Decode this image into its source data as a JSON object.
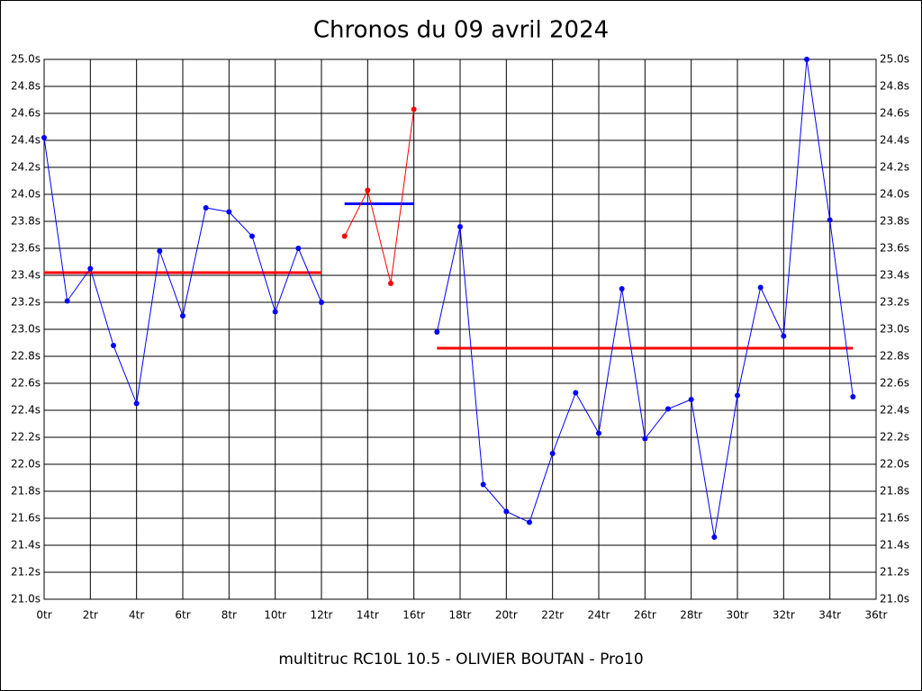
{
  "chart_data": {
    "type": "line",
    "title": "Chronos du 09 avril 2024",
    "footer": "multitruc RC10L 10.5 - OLIVIER BOUTAN - Pro10",
    "x": [
      0,
      1,
      2,
      3,
      4,
      5,
      6,
      7,
      8,
      9,
      10,
      11,
      12,
      13,
      14,
      15,
      16,
      17,
      18,
      19,
      20,
      21,
      22,
      23,
      24,
      25,
      26,
      27,
      28,
      29,
      30,
      31,
      32,
      33,
      34,
      35
    ],
    "series": [
      {
        "color": "#0000ff",
        "values": [
          24.42,
          23.21,
          23.45,
          22.88,
          22.45,
          23.58,
          23.1,
          23.9,
          23.87,
          23.69,
          23.13,
          23.6,
          23.2,
          null,
          null,
          null,
          null,
          22.98,
          23.76,
          21.85,
          21.65,
          21.57,
          22.08,
          22.53,
          22.23,
          23.3,
          22.19,
          22.41,
          22.48,
          21.46,
          22.51,
          23.31,
          22.95,
          25.0,
          23.81,
          22.5
        ]
      },
      {
        "color": "#ff0000",
        "values": [
          null,
          null,
          null,
          null,
          null,
          null,
          null,
          null,
          null,
          null,
          null,
          null,
          null,
          23.69,
          24.03,
          23.34,
          24.63,
          null,
          null,
          null,
          null,
          null,
          null,
          null,
          null,
          null,
          null,
          null,
          null,
          null,
          null,
          null,
          null,
          null,
          null,
          null
        ]
      }
    ],
    "reference_lines": [
      {
        "value": 23.42,
        "from": 0,
        "to": 12,
        "color": "#ff0000"
      },
      {
        "value": 23.93,
        "from": 13,
        "to": 16,
        "color": "#0000ff"
      },
      {
        "value": 22.86,
        "from": 17,
        "to": 35,
        "color": "#ff0000"
      }
    ],
    "xlim": [
      0,
      36
    ],
    "xticks": [
      {
        "value": 0,
        "label": "0tr"
      },
      {
        "value": 2,
        "label": "2tr"
      },
      {
        "value": 4,
        "label": "4tr"
      },
      {
        "value": 6,
        "label": "6tr"
      },
      {
        "value": 8,
        "label": "8tr"
      },
      {
        "value": 10,
        "label": "10tr"
      },
      {
        "value": 12,
        "label": "12tr"
      },
      {
        "value": 14,
        "label": "14tr"
      },
      {
        "value": 16,
        "label": "16tr"
      },
      {
        "value": 18,
        "label": "18tr"
      },
      {
        "value": 20,
        "label": "20tr"
      },
      {
        "value": 22,
        "label": "22tr"
      },
      {
        "value": 24,
        "label": "24tr"
      },
      {
        "value": 26,
        "label": "26tr"
      },
      {
        "value": 28,
        "label": "28tr"
      },
      {
        "value": 30,
        "label": "30tr"
      },
      {
        "value": 32,
        "label": "32tr"
      },
      {
        "value": 34,
        "label": "34tr"
      },
      {
        "value": 36,
        "label": "36tr"
      }
    ],
    "ylim": [
      21.0,
      25.0
    ],
    "yticks": [
      {
        "value": 21.0,
        "label": "21.0s"
      },
      {
        "value": 21.2,
        "label": "21.2s"
      },
      {
        "value": 21.4,
        "label": "21.4s"
      },
      {
        "value": 21.6,
        "label": "21.6s"
      },
      {
        "value": 21.8,
        "label": "21.8s"
      },
      {
        "value": 22.0,
        "label": "22.0s"
      },
      {
        "value": 22.2,
        "label": "22.2s"
      },
      {
        "value": 22.4,
        "label": "22.4s"
      },
      {
        "value": 22.6,
        "label": "22.6s"
      },
      {
        "value": 22.8,
        "label": "22.8s"
      },
      {
        "value": 23.0,
        "label": "23.0s"
      },
      {
        "value": 23.2,
        "label": "23.2s"
      },
      {
        "value": 23.4,
        "label": "23.4s"
      },
      {
        "value": 23.6,
        "label": "23.6s"
      },
      {
        "value": 23.8,
        "label": "23.8s"
      },
      {
        "value": 24.0,
        "label": "24.0s"
      },
      {
        "value": 24.2,
        "label": "24.2s"
      },
      {
        "value": 24.4,
        "label": "24.4s"
      },
      {
        "value": 24.6,
        "label": "24.6s"
      },
      {
        "value": 24.8,
        "label": "24.8s"
      },
      {
        "value": 25.0,
        "label": "25.0s"
      }
    ],
    "grid": true
  }
}
